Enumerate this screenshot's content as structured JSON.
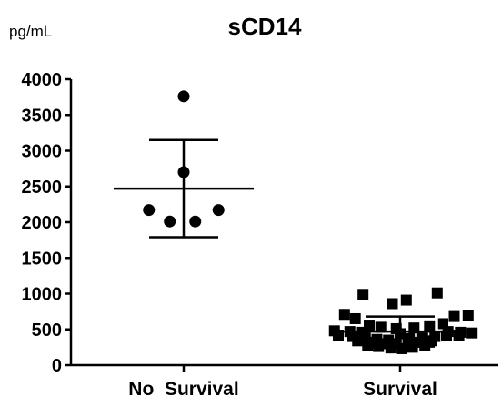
{
  "chart_data": {
    "type": "scatter",
    "title": "sCD14",
    "ylabel": "pg/mL",
    "xlabel": "",
    "ylim": [
      0,
      4000
    ],
    "yticks": [
      0,
      500,
      1000,
      1500,
      2000,
      2500,
      3000,
      3500,
      4000
    ],
    "grid": false,
    "categories": [
      "No  Survival",
      "Survival"
    ],
    "groups": [
      {
        "category": "No  Survival",
        "marker": "circle",
        "mean": 2470,
        "sd_upper": 3150,
        "sd_lower": 1790,
        "points": [
          {
            "offset": 0.0,
            "y": 3760
          },
          {
            "offset": 0.0,
            "y": 2700
          },
          {
            "offset": -0.45,
            "y": 2170
          },
          {
            "offset": 0.45,
            "y": 2170
          },
          {
            "offset": -0.18,
            "y": 2010
          },
          {
            "offset": 0.15,
            "y": 2010
          }
        ]
      },
      {
        "category": "Survival",
        "marker": "square",
        "mean": 470,
        "sd_upper": 680,
        "sd_lower": 260,
        "points": [
          {
            "offset": -0.48,
            "y": 990
          },
          {
            "offset": -0.1,
            "y": 860
          },
          {
            "offset": 0.08,
            "y": 910
          },
          {
            "offset": 0.48,
            "y": 1010
          },
          {
            "offset": -0.72,
            "y": 710
          },
          {
            "offset": -0.58,
            "y": 650
          },
          {
            "offset": 0.7,
            "y": 680
          },
          {
            "offset": 0.88,
            "y": 700
          },
          {
            "offset": -0.4,
            "y": 560
          },
          {
            "offset": -0.25,
            "y": 530
          },
          {
            "offset": -0.05,
            "y": 510
          },
          {
            "offset": 0.18,
            "y": 520
          },
          {
            "offset": 0.38,
            "y": 550
          },
          {
            "offset": 0.55,
            "y": 580
          },
          {
            "offset": -0.85,
            "y": 480
          },
          {
            "offset": -0.65,
            "y": 470
          },
          {
            "offset": -0.5,
            "y": 460
          },
          {
            "offset": 0.0,
            "y": 440
          },
          {
            "offset": 0.62,
            "y": 470
          },
          {
            "offset": 0.78,
            "y": 460
          },
          {
            "offset": 0.92,
            "y": 450
          },
          {
            "offset": -0.8,
            "y": 420
          },
          {
            "offset": -0.62,
            "y": 400
          },
          {
            "offset": -0.45,
            "y": 380
          },
          {
            "offset": -0.3,
            "y": 360
          },
          {
            "offset": -0.15,
            "y": 350
          },
          {
            "offset": 0.12,
            "y": 370
          },
          {
            "offset": 0.28,
            "y": 380
          },
          {
            "offset": 0.45,
            "y": 400
          },
          {
            "offset": 0.6,
            "y": 410
          },
          {
            "offset": 0.76,
            "y": 420
          },
          {
            "offset": -0.55,
            "y": 340
          },
          {
            "offset": -0.38,
            "y": 320
          },
          {
            "offset": -0.22,
            "y": 300
          },
          {
            "offset": -0.05,
            "y": 300
          },
          {
            "offset": 0.1,
            "y": 310
          },
          {
            "offset": 0.25,
            "y": 320
          },
          {
            "offset": 0.4,
            "y": 340
          },
          {
            "offset": -0.42,
            "y": 280
          },
          {
            "offset": -0.28,
            "y": 260
          },
          {
            "offset": -0.12,
            "y": 240
          },
          {
            "offset": 0.02,
            "y": 230
          },
          {
            "offset": 0.16,
            "y": 250
          },
          {
            "offset": 0.32,
            "y": 270
          }
        ]
      }
    ]
  }
}
